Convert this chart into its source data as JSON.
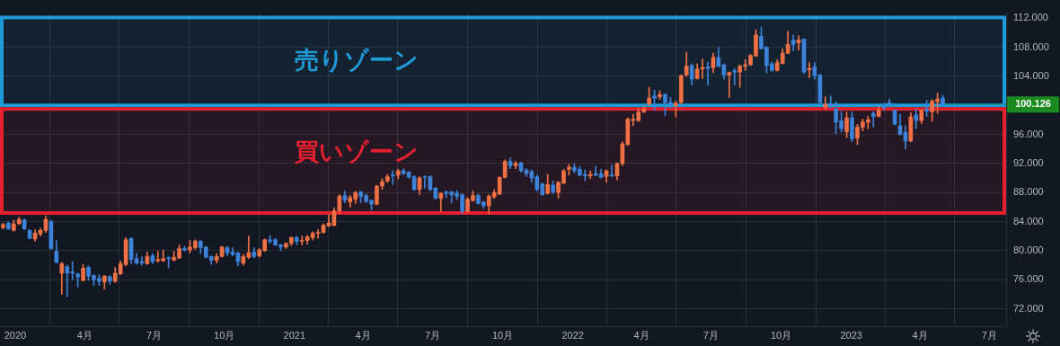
{
  "chart_data": {
    "type": "candlestick",
    "x": [
      "2019-12-16",
      "2019-12-23",
      "2019-12-30",
      "2020-01-06",
      "2020-01-13",
      "2020-01-20",
      "2020-01-27",
      "2020-02-03",
      "2020-02-10",
      "2020-02-17",
      "2020-02-24",
      "2020-03-02",
      "2020-03-09",
      "2020-03-16",
      "2020-03-23",
      "2020-03-30",
      "2020-04-06",
      "2020-04-13",
      "2020-04-20",
      "2020-04-27",
      "2020-05-04",
      "2020-05-11",
      "2020-05-18",
      "2020-05-25",
      "2020-06-01",
      "2020-06-08",
      "2020-06-15",
      "2020-06-22",
      "2020-06-29",
      "2020-07-06",
      "2020-07-13",
      "2020-07-20",
      "2020-07-27",
      "2020-08-03",
      "2020-08-10",
      "2020-08-17",
      "2020-08-24",
      "2020-08-31",
      "2020-09-07",
      "2020-09-14",
      "2020-09-21",
      "2020-09-28",
      "2020-10-05",
      "2020-10-12",
      "2020-10-19",
      "2020-10-26",
      "2020-11-02",
      "2020-11-09",
      "2020-11-16",
      "2020-11-23",
      "2020-11-30",
      "2020-12-07",
      "2020-12-14",
      "2020-12-21",
      "2020-12-28",
      "2021-01-04",
      "2021-01-11",
      "2021-01-18",
      "2021-01-25",
      "2021-02-01",
      "2021-02-08",
      "2021-02-15",
      "2021-02-22",
      "2021-03-01",
      "2021-03-08",
      "2021-03-15",
      "2021-03-22",
      "2021-03-29",
      "2021-04-05",
      "2021-04-12",
      "2021-04-19",
      "2021-04-26",
      "2021-05-03",
      "2021-05-10",
      "2021-05-17",
      "2021-05-24",
      "2021-05-31",
      "2021-06-07",
      "2021-06-14",
      "2021-06-21",
      "2021-06-28",
      "2021-07-05",
      "2021-07-12",
      "2021-07-19",
      "2021-07-26",
      "2021-08-02",
      "2021-08-09",
      "2021-08-16",
      "2021-08-23",
      "2021-08-30",
      "2021-09-06",
      "2021-09-13",
      "2021-09-20",
      "2021-09-27",
      "2021-10-04",
      "2021-10-11",
      "2021-10-18",
      "2021-10-25",
      "2021-11-01",
      "2021-11-08",
      "2021-11-15",
      "2021-11-22",
      "2021-11-29",
      "2021-12-06",
      "2021-12-13",
      "2021-12-20",
      "2021-12-27",
      "2022-01-03",
      "2022-01-10",
      "2022-01-17",
      "2022-01-24",
      "2022-01-31",
      "2022-02-07",
      "2022-02-14",
      "2022-02-21",
      "2022-02-28",
      "2022-03-07",
      "2022-03-14",
      "2022-03-21",
      "2022-03-28",
      "2022-04-04",
      "2022-04-11",
      "2022-04-18",
      "2022-04-25",
      "2022-05-02",
      "2022-05-09",
      "2022-05-16",
      "2022-05-23",
      "2022-05-30",
      "2022-06-06",
      "2022-06-13",
      "2022-06-20",
      "2022-06-27",
      "2022-07-04",
      "2022-07-11",
      "2022-07-18",
      "2022-07-25",
      "2022-08-01",
      "2022-08-08",
      "2022-08-15",
      "2022-08-22",
      "2022-08-29",
      "2022-09-05",
      "2022-09-12",
      "2022-09-19",
      "2022-09-26",
      "2022-10-03",
      "2022-10-10",
      "2022-10-17",
      "2022-10-24",
      "2022-10-31",
      "2022-11-07",
      "2022-11-14",
      "2022-11-21",
      "2022-11-28",
      "2022-12-05",
      "2022-12-12",
      "2022-12-19",
      "2022-12-26",
      "2023-01-02",
      "2023-01-09",
      "2023-01-16",
      "2023-01-23",
      "2023-01-30",
      "2023-02-06",
      "2023-02-13",
      "2023-02-20",
      "2023-02-27",
      "2023-03-06",
      "2023-03-13",
      "2023-03-20",
      "2023-03-27",
      "2023-04-03",
      "2023-04-10",
      "2023-04-17",
      "2023-04-24",
      "2023-05-01"
    ],
    "ohlc": [
      [
        83.2,
        83.8,
        83.0,
        83.6
      ],
      [
        83.8,
        84.0,
        82.9,
        83.0
      ],
      [
        82.8,
        84.2,
        82.7,
        83.7
      ],
      [
        83.7,
        84.6,
        83.6,
        84.3
      ],
      [
        84.2,
        84.4,
        82.9,
        83.0
      ],
      [
        82.8,
        82.9,
        81.6,
        81.7
      ],
      [
        81.6,
        82.9,
        81.3,
        82.4
      ],
      [
        82.3,
        83.1,
        82.0,
        82.8
      ],
      [
        82.8,
        84.8,
        82.5,
        84.3
      ],
      [
        84.0,
        84.2,
        80.2,
        80.3
      ],
      [
        79.9,
        81.4,
        78.3,
        78.4
      ],
      [
        76.9,
        78.4,
        74.0,
        78.2
      ],
      [
        77.8,
        78.0,
        73.7,
        76.9
      ],
      [
        77.1,
        78.5,
        76.0,
        76.9
      ],
      [
        76.8,
        76.9,
        75.0,
        76.4
      ],
      [
        75.9,
        78.1,
        75.8,
        77.6
      ],
      [
        77.7,
        77.9,
        75.9,
        76.5
      ],
      [
        76.6,
        76.7,
        75.2,
        76.0
      ],
      [
        76.2,
        76.7,
        75.2,
        75.8
      ],
      [
        75.7,
        76.6,
        74.7,
        76.5
      ],
      [
        76.4,
        76.6,
        75.4,
        75.8
      ],
      [
        75.8,
        77.7,
        75.6,
        76.9
      ],
      [
        76.8,
        78.6,
        76.7,
        78.2
      ],
      [
        78.1,
        81.8,
        77.9,
        81.5
      ],
      [
        81.7,
        81.8,
        78.2,
        78.8
      ],
      [
        78.9,
        79.6,
        78.1,
        78.3
      ],
      [
        78.5,
        79.2,
        78.0,
        78.3
      ],
      [
        78.2,
        79.8,
        78.1,
        79.2
      ],
      [
        79.3,
        79.6,
        78.2,
        78.5
      ],
      [
        78.6,
        79.9,
        78.4,
        78.8
      ],
      [
        78.6,
        80.1,
        78.5,
        78.9
      ],
      [
        79.0,
        79.2,
        77.6,
        78.9
      ],
      [
        78.7,
        79.9,
        78.6,
        79.1
      ],
      [
        79.0,
        80.8,
        78.9,
        80.3
      ],
      [
        80.3,
        80.6,
        79.9,
        80.1
      ],
      [
        80.1,
        81.4,
        79.7,
        80.5
      ],
      [
        80.4,
        81.5,
        80.2,
        81.3
      ],
      [
        81.3,
        81.4,
        79.6,
        80.4
      ],
      [
        80.5,
        80.6,
        79.0,
        79.1
      ],
      [
        79.2,
        79.3,
        78.1,
        78.7
      ],
      [
        78.7,
        79.6,
        78.3,
        79.2
      ],
      [
        79.2,
        80.6,
        79.1,
        80.5
      ],
      [
        80.4,
        80.6,
        79.3,
        79.7
      ],
      [
        79.8,
        80.4,
        79.3,
        79.5
      ],
      [
        79.7,
        79.8,
        77.9,
        78.5
      ],
      [
        78.3,
        79.5,
        78.0,
        79.2
      ],
      [
        79.1,
        82.0,
        78.9,
        79.7
      ],
      [
        79.8,
        80.4,
        79.0,
        79.2
      ],
      [
        79.3,
        80.3,
        79.1,
        80.1
      ],
      [
        80.0,
        81.6,
        79.9,
        81.5
      ],
      [
        81.5,
        82.1,
        81.0,
        81.3
      ],
      [
        81.5,
        81.7,
        80.7,
        80.8
      ],
      [
        80.8,
        80.9,
        80.0,
        80.5
      ],
      [
        80.5,
        81.1,
        80.3,
        81.0
      ],
      [
        81.0,
        81.9,
        80.7,
        81.8
      ],
      [
        81.8,
        82.0,
        80.8,
        81.3
      ],
      [
        81.3,
        82.0,
        80.8,
        81.4
      ],
      [
        81.4,
        82.1,
        80.9,
        81.9
      ],
      [
        81.8,
        82.6,
        81.5,
        82.4
      ],
      [
        82.4,
        82.9,
        81.7,
        82.5
      ],
      [
        82.5,
        83.7,
        82.4,
        83.5
      ],
      [
        83.4,
        85.0,
        83.3,
        83.8
      ],
      [
        83.5,
        85.9,
        83.4,
        85.5
      ],
      [
        85.5,
        87.7,
        85.1,
        87.5
      ],
      [
        87.6,
        88.2,
        86.6,
        87.0
      ],
      [
        86.7,
        87.6,
        86.0,
        87.3
      ],
      [
        87.1,
        88.2,
        86.5,
        88.0
      ],
      [
        88.1,
        88.2,
        86.6,
        87.5
      ],
      [
        87.6,
        87.8,
        86.6,
        86.8
      ],
      [
        86.9,
        87.0,
        85.6,
        86.4
      ],
      [
        86.4,
        89.0,
        86.3,
        88.9
      ],
      [
        88.9,
        89.9,
        88.4,
        89.5
      ],
      [
        89.6,
        90.5,
        89.4,
        90.2
      ],
      [
        90.4,
        91.0,
        89.1,
        90.3
      ],
      [
        90.4,
        91.2,
        89.9,
        91.0
      ],
      [
        91.0,
        91.3,
        90.5,
        90.6
      ],
      [
        90.8,
        90.9,
        90.0,
        90.1
      ],
      [
        90.2,
        90.3,
        88.3,
        88.4
      ],
      [
        88.4,
        90.2,
        87.7,
        90.0
      ],
      [
        90.2,
        90.3,
        88.6,
        90.1
      ],
      [
        90.2,
        90.3,
        88.3,
        88.4
      ],
      [
        88.6,
        88.7,
        87.1,
        87.2
      ],
      [
        87.2,
        88.0,
        85.4,
        87.9
      ],
      [
        88.1,
        88.2,
        87.3,
        87.9
      ],
      [
        88.1,
        88.2,
        86.6,
        87.7
      ],
      [
        87.9,
        88.3,
        87.0,
        87.5
      ],
      [
        87.7,
        87.8,
        85.1,
        85.4
      ],
      [
        85.4,
        87.3,
        85.3,
        87.1
      ],
      [
        86.9,
        88.2,
        86.8,
        87.6
      ],
      [
        87.6,
        87.8,
        86.4,
        86.5
      ],
      [
        86.7,
        86.8,
        85.8,
        86.2
      ],
      [
        86.2,
        87.7,
        85.1,
        87.5
      ],
      [
        87.4,
        88.4,
        87.2,
        88.0
      ],
      [
        87.8,
        90.2,
        87.7,
        90.1
      ],
      [
        90.1,
        92.5,
        90.0,
        92.3
      ],
      [
        92.3,
        92.8,
        91.3,
        91.7
      ],
      [
        91.7,
        92.3,
        91.3,
        92.0
      ],
      [
        92.1,
        92.2,
        90.8,
        91.0
      ],
      [
        91.1,
        91.3,
        90.2,
        90.6
      ],
      [
        90.9,
        91.1,
        89.4,
        90.0
      ],
      [
        90.2,
        90.4,
        88.2,
        88.4
      ],
      [
        89.2,
        89.3,
        87.6,
        87.7
      ],
      [
        87.9,
        90.5,
        87.8,
        89.1
      ],
      [
        89.0,
        89.6,
        87.8,
        88.1
      ],
      [
        88.0,
        89.5,
        87.2,
        89.4
      ],
      [
        89.3,
        91.2,
        89.2,
        91.0
      ],
      [
        91.2,
        91.9,
        90.4,
        91.5
      ],
      [
        91.5,
        92.0,
        90.7,
        91.0
      ],
      [
        91.2,
        91.6,
        90.3,
        90.4
      ],
      [
        90.5,
        91.1,
        89.6,
        90.3
      ],
      [
        90.3,
        91.0,
        89.9,
        90.5
      ],
      [
        90.6,
        91.6,
        90.3,
        90.4
      ],
      [
        90.6,
        91.2,
        90.0,
        90.1
      ],
      [
        90.2,
        91.1,
        89.4,
        91.0
      ],
      [
        90.4,
        91.8,
        90.2,
        90.3
      ],
      [
        90.3,
        92.1,
        89.7,
        92.0
      ],
      [
        92.0,
        95.0,
        91.7,
        94.7
      ],
      [
        94.6,
        98.3,
        94.5,
        98.1
      ],
      [
        97.9,
        98.8,
        97.2,
        98.1
      ],
      [
        97.9,
        99.6,
        97.8,
        99.1
      ],
      [
        99.1,
        99.9,
        99.0,
        99.5
      ],
      [
        100.2,
        102.5,
        100.0,
        101.0
      ],
      [
        101.3,
        102.1,
        99.3,
        101.0
      ],
      [
        101.2,
        102.0,
        100.8,
        101.5
      ],
      [
        101.5,
        101.6,
        98.6,
        100.4
      ],
      [
        100.4,
        101.1,
        99.6,
        100.2
      ],
      [
        100.0,
        100.6,
        98.4,
        100.3
      ],
      [
        100.4,
        104.2,
        100.2,
        104.1
      ],
      [
        104.2,
        107.3,
        104.0,
        105.4
      ],
      [
        105.5,
        105.7,
        102.8,
        103.6
      ],
      [
        103.7,
        105.7,
        103.6,
        105.0
      ],
      [
        105.0,
        106.4,
        103.7,
        105.2
      ],
      [
        105.3,
        106.0,
        102.8,
        105.1
      ],
      [
        105.2,
        107.2,
        104.5,
        106.6
      ],
      [
        106.6,
        108.0,
        105.3,
        105.4
      ],
      [
        105.6,
        105.7,
        103.6,
        104.2
      ],
      [
        104.2,
        104.6,
        101.1,
        104.5
      ],
      [
        104.8,
        105.1,
        102.8,
        104.6
      ],
      [
        104.6,
        105.6,
        102.5,
        105.4
      ],
      [
        105.4,
        106.3,
        104.8,
        105.6
      ],
      [
        105.6,
        107.0,
        105.5,
        106.9
      ],
      [
        106.8,
        110.4,
        106.7,
        109.7
      ],
      [
        109.5,
        110.8,
        107.7,
        107.8
      ],
      [
        108.0,
        108.1,
        104.5,
        105.5
      ],
      [
        105.7,
        106.0,
        104.7,
        104.8
      ],
      [
        104.8,
        106.3,
        104.7,
        105.9
      ],
      [
        105.8,
        107.8,
        105.7,
        107.2
      ],
      [
        107.2,
        110.2,
        107.1,
        108.4
      ],
      [
        109.0,
        109.7,
        107.5,
        108.4
      ],
      [
        108.6,
        109.6,
        107.6,
        109.0
      ],
      [
        109.1,
        109.2,
        104.4,
        104.6
      ],
      [
        104.9,
        105.9,
        103.8,
        105.1
      ],
      [
        105.3,
        105.9,
        103.6,
        104.1
      ],
      [
        104.2,
        104.3,
        100.2,
        100.4
      ],
      [
        99.8,
        101.2,
        99.5,
        100.1
      ],
      [
        100.2,
        101.3,
        99.6,
        99.9
      ],
      [
        99.5,
        100.5,
        96.1,
        97.7
      ],
      [
        97.9,
        99.2,
        96.3,
        96.8
      ],
      [
        96.4,
        99.1,
        95.6,
        98.3
      ],
      [
        98.3,
        99.1,
        95.0,
        95.4
      ],
      [
        95.5,
        97.4,
        94.6,
        97.0
      ],
      [
        97.0,
        98.1,
        96.5,
        97.7
      ],
      [
        97.7,
        98.5,
        96.8,
        98.0
      ],
      [
        98.9,
        99.1,
        97.0,
        98.5
      ],
      [
        98.5,
        99.8,
        98.4,
        99.3
      ],
      [
        99.8,
        100.3,
        99.3,
        99.7
      ],
      [
        100.4,
        100.9,
        99.8,
        100.1
      ],
      [
        99.3,
        99.4,
        97.3,
        97.4
      ],
      [
        97.2,
        98.8,
        95.9,
        96.0
      ],
      [
        96.3,
        97.2,
        94.0,
        95.1
      ],
      [
        95.1,
        99.0,
        95.0,
        98.4
      ],
      [
        98.7,
        99.5,
        96.8,
        97.9
      ],
      [
        97.9,
        99.4,
        97.5,
        99.3
      ],
      [
        99.5,
        100.7,
        98.5,
        99.2
      ],
      [
        99.1,
        100.8,
        97.8,
        100.6
      ],
      [
        100.5,
        101.7,
        98.9,
        100.9
      ],
      [
        101.0,
        101.4,
        100.1,
        100.126
      ]
    ],
    "colors": [
      "#ef7045",
      "#3b82d8",
      "#ef7045",
      "#ef7045",
      "#3b82d8",
      "#3b82d8",
      "#ef7045",
      "#ef7045",
      "#ef7045",
      "#3b82d8",
      "#3b82d8",
      "#ef7045",
      "#3b82d8",
      "#3b82d8",
      "#3b82d8",
      "#ef7045",
      "#3b82d8",
      "#3b82d8",
      "#3b82d8",
      "#ef7045",
      "#3b82d8",
      "#ef7045",
      "#ef7045",
      "#ef7045",
      "#3b82d8",
      "#3b82d8",
      "#3b82d8",
      "#ef7045",
      "#3b82d8",
      "#ef7045",
      "#ef7045",
      "#3b82d8",
      "#ef7045",
      "#ef7045",
      "#3b82d8",
      "#ef7045",
      "#ef7045",
      "#3b82d8",
      "#3b82d8",
      "#3b82d8",
      "#ef7045",
      "#ef7045",
      "#3b82d8",
      "#3b82d8",
      "#3b82d8",
      "#ef7045",
      "#ef7045",
      "#3b82d8",
      "#ef7045",
      "#ef7045",
      "#3b82d8",
      "#3b82d8",
      "#3b82d8",
      "#ef7045",
      "#ef7045",
      "#3b82d8",
      "#ef7045",
      "#ef7045",
      "#ef7045",
      "#ef7045",
      "#ef7045",
      "#ef7045",
      "#ef7045",
      "#ef7045",
      "#3b82d8",
      "#ef7045",
      "#ef7045",
      "#3b82d8",
      "#3b82d8",
      "#3b82d8",
      "#ef7045",
      "#ef7045",
      "#ef7045",
      "#3b82d8",
      "#ef7045",
      "#3b82d8",
      "#3b82d8",
      "#3b82d8",
      "#ef7045",
      "#3b82d8",
      "#3b82d8",
      "#3b82d8",
      "#ef7045",
      "#3b82d8",
      "#3b82d8",
      "#3b82d8",
      "#3b82d8",
      "#ef7045",
      "#ef7045",
      "#3b82d8",
      "#3b82d8",
      "#ef7045",
      "#ef7045",
      "#ef7045",
      "#ef7045",
      "#3b82d8",
      "#ef7045",
      "#3b82d8",
      "#3b82d8",
      "#3b82d8",
      "#3b82d8",
      "#3b82d8",
      "#ef7045",
      "#3b82d8",
      "#ef7045",
      "#ef7045",
      "#ef7045",
      "#3b82d8",
      "#3b82d8",
      "#3b82d8",
      "#ef7045",
      "#3b82d8",
      "#3b82d8",
      "#ef7045",
      "#3b82d8",
      "#ef7045",
      "#ef7045",
      "#ef7045",
      "#ef7045",
      "#ef7045",
      "#ef7045",
      "#ef7045",
      "#3b82d8",
      "#ef7045",
      "#3b82d8",
      "#3b82d8",
      "#ef7045",
      "#ef7045",
      "#ef7045",
      "#3b82d8",
      "#ef7045",
      "#ef7045",
      "#3b82d8",
      "#ef7045",
      "#3b82d8",
      "#3b82d8",
      "#ef7045",
      "#3b82d8",
      "#ef7045",
      "#ef7045",
      "#ef7045",
      "#ef7045",
      "#3b82d8",
      "#3b82d8",
      "#3b82d8",
      "#ef7045",
      "#ef7045",
      "#ef7045",
      "#3b82d8",
      "#ef7045",
      "#3b82d8",
      "#ef7045",
      "#3b82d8",
      "#3b82d8",
      "#ef7045",
      "#3b82d8",
      "#3b82d8",
      "#3b82d8",
      "#ef7045",
      "#3b82d8",
      "#ef7045",
      "#ef7045",
      "#ef7045",
      "#3b82d8",
      "#ef7045",
      "#3b82d8",
      "#3b82d8",
      "#3b82d8",
      "#3b82d8",
      "#3b82d8",
      "#ef7045",
      "#3b82d8",
      "#ef7045",
      "#3b82d8",
      "#ef7045",
      "#ef7045",
      "#3b82d8"
    ],
    "xlim": [
      "2019-12-12",
      "2023-07-23"
    ],
    "xticks": [
      {
        "value": "2020-01-01",
        "label": "2020"
      },
      {
        "value": "2020-04-01",
        "label": "4月"
      },
      {
        "value": "2020-07-01",
        "label": "7月"
      },
      {
        "value": "2020-10-01",
        "label": "10月"
      },
      {
        "value": "2021-01-01",
        "label": "2021"
      },
      {
        "value": "2021-04-01",
        "label": "4月"
      },
      {
        "value": "2021-07-01",
        "label": "7月"
      },
      {
        "value": "2021-10-01",
        "label": "10月"
      },
      {
        "value": "2022-01-01",
        "label": "2022"
      },
      {
        "value": "2022-04-01",
        "label": "4月"
      },
      {
        "value": "2022-07-01",
        "label": "7月"
      },
      {
        "value": "2022-10-01",
        "label": "10月"
      },
      {
        "value": "2023-01-01",
        "label": "2023"
      },
      {
        "value": "2023-04-01",
        "label": "4月"
      },
      {
        "value": "2023-07-01",
        "label": "7月"
      }
    ],
    "ylim": [
      69.6,
      112.7
    ],
    "yticks": [
      {
        "value": 72,
        "label": "72.000"
      },
      {
        "value": 76,
        "label": "76.000"
      },
      {
        "value": 80,
        "label": "80.000"
      },
      {
        "value": 84,
        "label": "84.000"
      },
      {
        "value": 88,
        "label": "88.000"
      },
      {
        "value": 92,
        "label": "92.000"
      },
      {
        "value": 96,
        "label": "96.000"
      },
      {
        "value": 104,
        "label": "104.000"
      },
      {
        "value": 108,
        "label": "108.000"
      },
      {
        "value": 112,
        "label": "112.000"
      }
    ],
    "grid": true,
    "bands": [
      {
        "axis": "y",
        "from": 100,
        "to": 112.1,
        "label": "売りゾーン",
        "color": "#1e9bd7"
      },
      {
        "axis": "y",
        "from": 85.2,
        "to": 99.5,
        "label": "買いゾーン",
        "color": "#e5202e"
      }
    ],
    "annotations": [
      {
        "text": "100.126",
        "x": "2023-05-01",
        "y": 100.126
      }
    ]
  }
}
